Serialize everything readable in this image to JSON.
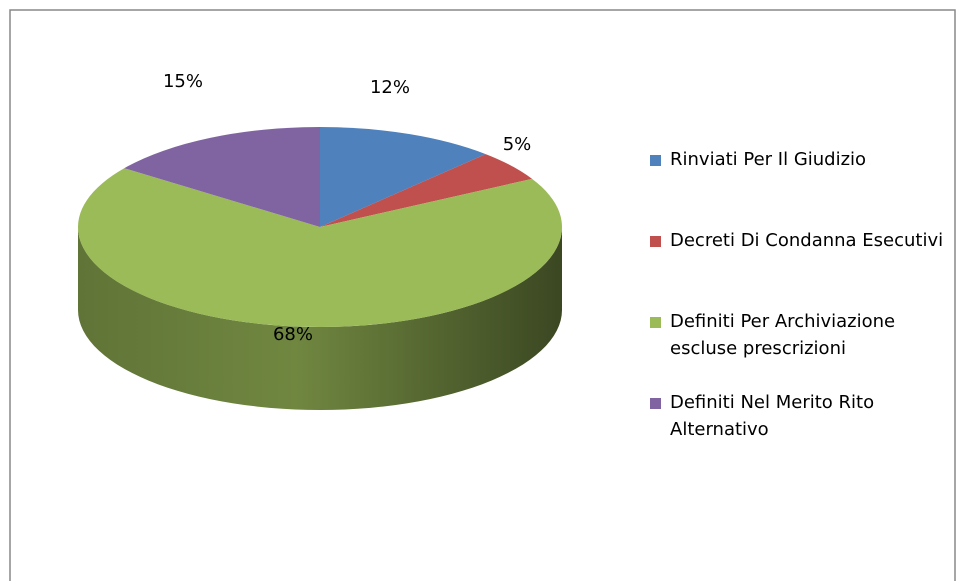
{
  "chart_data": {
    "type": "pie",
    "categories": [
      "Rinviati Per Il Giudizio",
      "Decreti Di Condanna Esecutivi",
      "Definiti Per Archiviazione escluse prescrizioni",
      "Definiti Nel Merito Rito Alternativo"
    ],
    "values": [
      12,
      5,
      68,
      15
    ],
    "value_labels": [
      "12%",
      "5%",
      "68%",
      "15%"
    ],
    "colors": [
      "#4f81bd",
      "#c0504d",
      "#9bbb59",
      "#8064a2"
    ],
    "legend": "right"
  }
}
